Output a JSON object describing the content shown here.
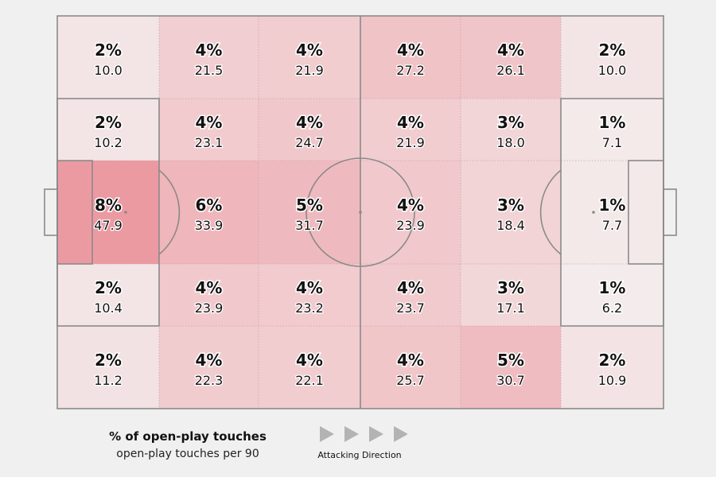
{
  "chart_data": {
    "type": "heatmap",
    "columns": 6,
    "rows": 5,
    "cells": [
      [
        {
          "pct": "2%",
          "value": "10.0"
        },
        {
          "pct": "4%",
          "value": "21.5"
        },
        {
          "pct": "4%",
          "value": "21.9"
        },
        {
          "pct": "4%",
          "value": "27.2"
        },
        {
          "pct": "4%",
          "value": "26.1"
        },
        {
          "pct": "2%",
          "value": "10.0"
        }
      ],
      [
        {
          "pct": "2%",
          "value": "10.2"
        },
        {
          "pct": "4%",
          "value": "23.1"
        },
        {
          "pct": "4%",
          "value": "24.7"
        },
        {
          "pct": "4%",
          "value": "21.9"
        },
        {
          "pct": "3%",
          "value": "18.0"
        },
        {
          "pct": "1%",
          "value": "7.1"
        }
      ],
      [
        {
          "pct": "8%",
          "value": "47.9"
        },
        {
          "pct": "6%",
          "value": "33.9"
        },
        {
          "pct": "5%",
          "value": "31.7"
        },
        {
          "pct": "4%",
          "value": "23.9"
        },
        {
          "pct": "3%",
          "value": "18.4"
        },
        {
          "pct": "1%",
          "value": "7.7"
        }
      ],
      [
        {
          "pct": "2%",
          "value": "10.4"
        },
        {
          "pct": "4%",
          "value": "23.9"
        },
        {
          "pct": "4%",
          "value": "23.2"
        },
        {
          "pct": "4%",
          "value": "23.7"
        },
        {
          "pct": "3%",
          "value": "17.1"
        },
        {
          "pct": "1%",
          "value": "6.2"
        }
      ],
      [
        {
          "pct": "2%",
          "value": "11.2"
        },
        {
          "pct": "4%",
          "value": "22.3"
        },
        {
          "pct": "4%",
          "value": "22.1"
        },
        {
          "pct": "4%",
          "value": "25.7"
        },
        {
          "pct": "5%",
          "value": "30.7"
        },
        {
          "pct": "2%",
          "value": "10.9"
        }
      ]
    ],
    "color_scale": {
      "low": "#f4ecec",
      "high": "#ec9aa2",
      "min": 6.2,
      "max": 47.9
    }
  },
  "legend": {
    "title": "% of open-play touches",
    "subtitle": "open-play touches per 90"
  },
  "direction": {
    "label": "Attacking Direction",
    "arrow_count": 4
  },
  "colors": {
    "background": "#f0f0f0",
    "pitch_lines": "#8a8a8a",
    "text": "#111111",
    "arrow": "#b3b3b3"
  }
}
